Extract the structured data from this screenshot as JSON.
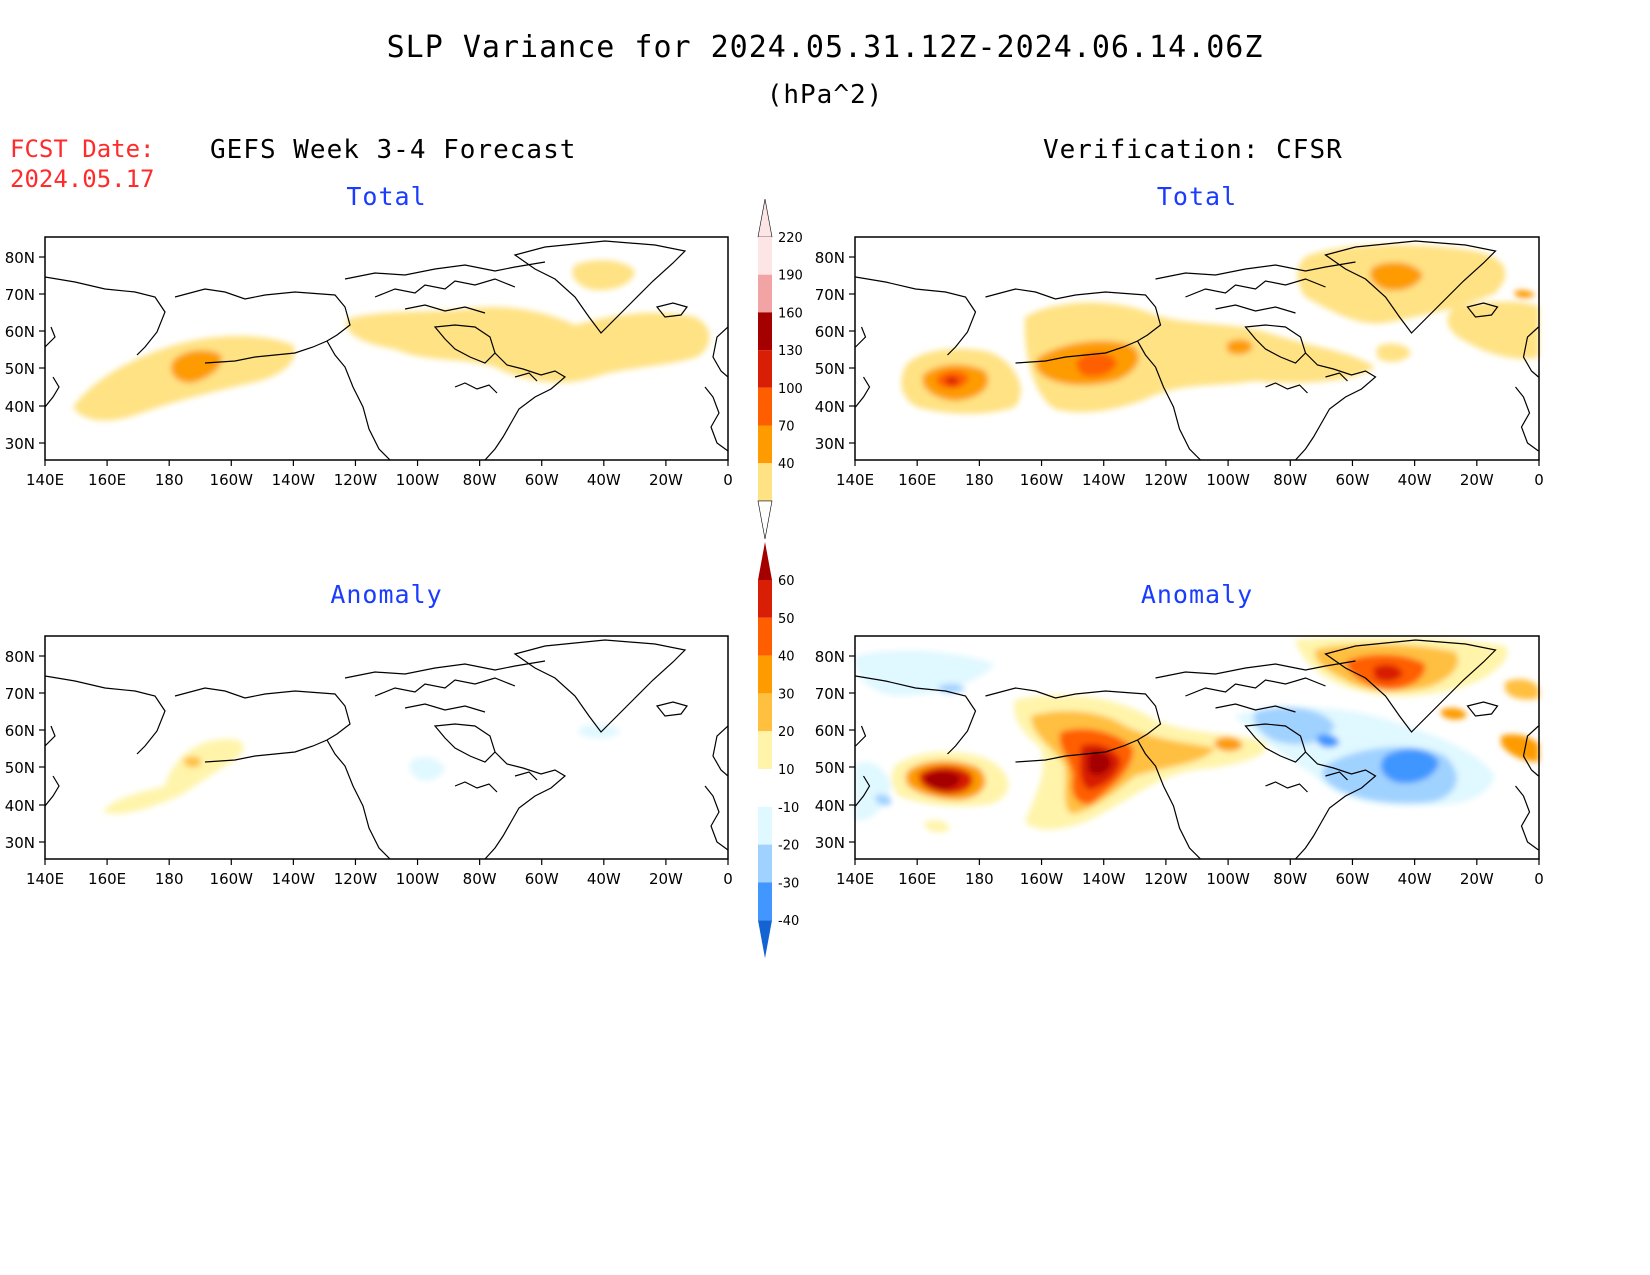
{
  "title": "SLP Variance for 2024.05.31.12Z-2024.06.14.06Z",
  "units": "(hPa^2)",
  "fcst_label": "FCST Date:",
  "fcst_date": "2024.05.17",
  "left_header": "GEFS Week 3-4 Forecast",
  "right_header": "Verification: CFSR",
  "panels": [
    {
      "id": "fc-total",
      "subtitle": "Total"
    },
    {
      "id": "vf-total",
      "subtitle": "Total"
    },
    {
      "id": "fc-anom",
      "subtitle": "Anomaly"
    },
    {
      "id": "vf-anom",
      "subtitle": "Anomaly"
    }
  ],
  "lat_labels": [
    "80N",
    "70N",
    "60N",
    "50N",
    "40N",
    "30N"
  ],
  "lon_labels": [
    "140E",
    "160E",
    "180",
    "160W",
    "140W",
    "120W",
    "100W",
    "80W",
    "60W",
    "40W",
    "20W",
    "0"
  ],
  "colorbar_total": {
    "labels": [
      "220",
      "190",
      "160",
      "130",
      "100",
      "70",
      "40"
    ],
    "colors": [
      "#fde5e5",
      "#f2a3a3",
      "#a40000",
      "#d81e05",
      "#ff5e00",
      "#fd9b00",
      "#ffe283"
    ]
  },
  "colorbar_anom": {
    "labels": [
      "60",
      "50",
      "40",
      "30",
      "20",
      "10",
      "-10",
      "-20",
      "-30",
      "-40"
    ],
    "colors": [
      "#a40000",
      "#d81e05",
      "#ff5e00",
      "#fd9b00",
      "#ffbf3f",
      "#fff4aa",
      "#ffffff",
      "#e0f8ff",
      "#a0d2ff",
      "#4196ff",
      "#1463d2"
    ]
  },
  "colors": {
    "accent_red": "#ff2a2a",
    "subtitle_blue": "#1a3cff"
  }
}
